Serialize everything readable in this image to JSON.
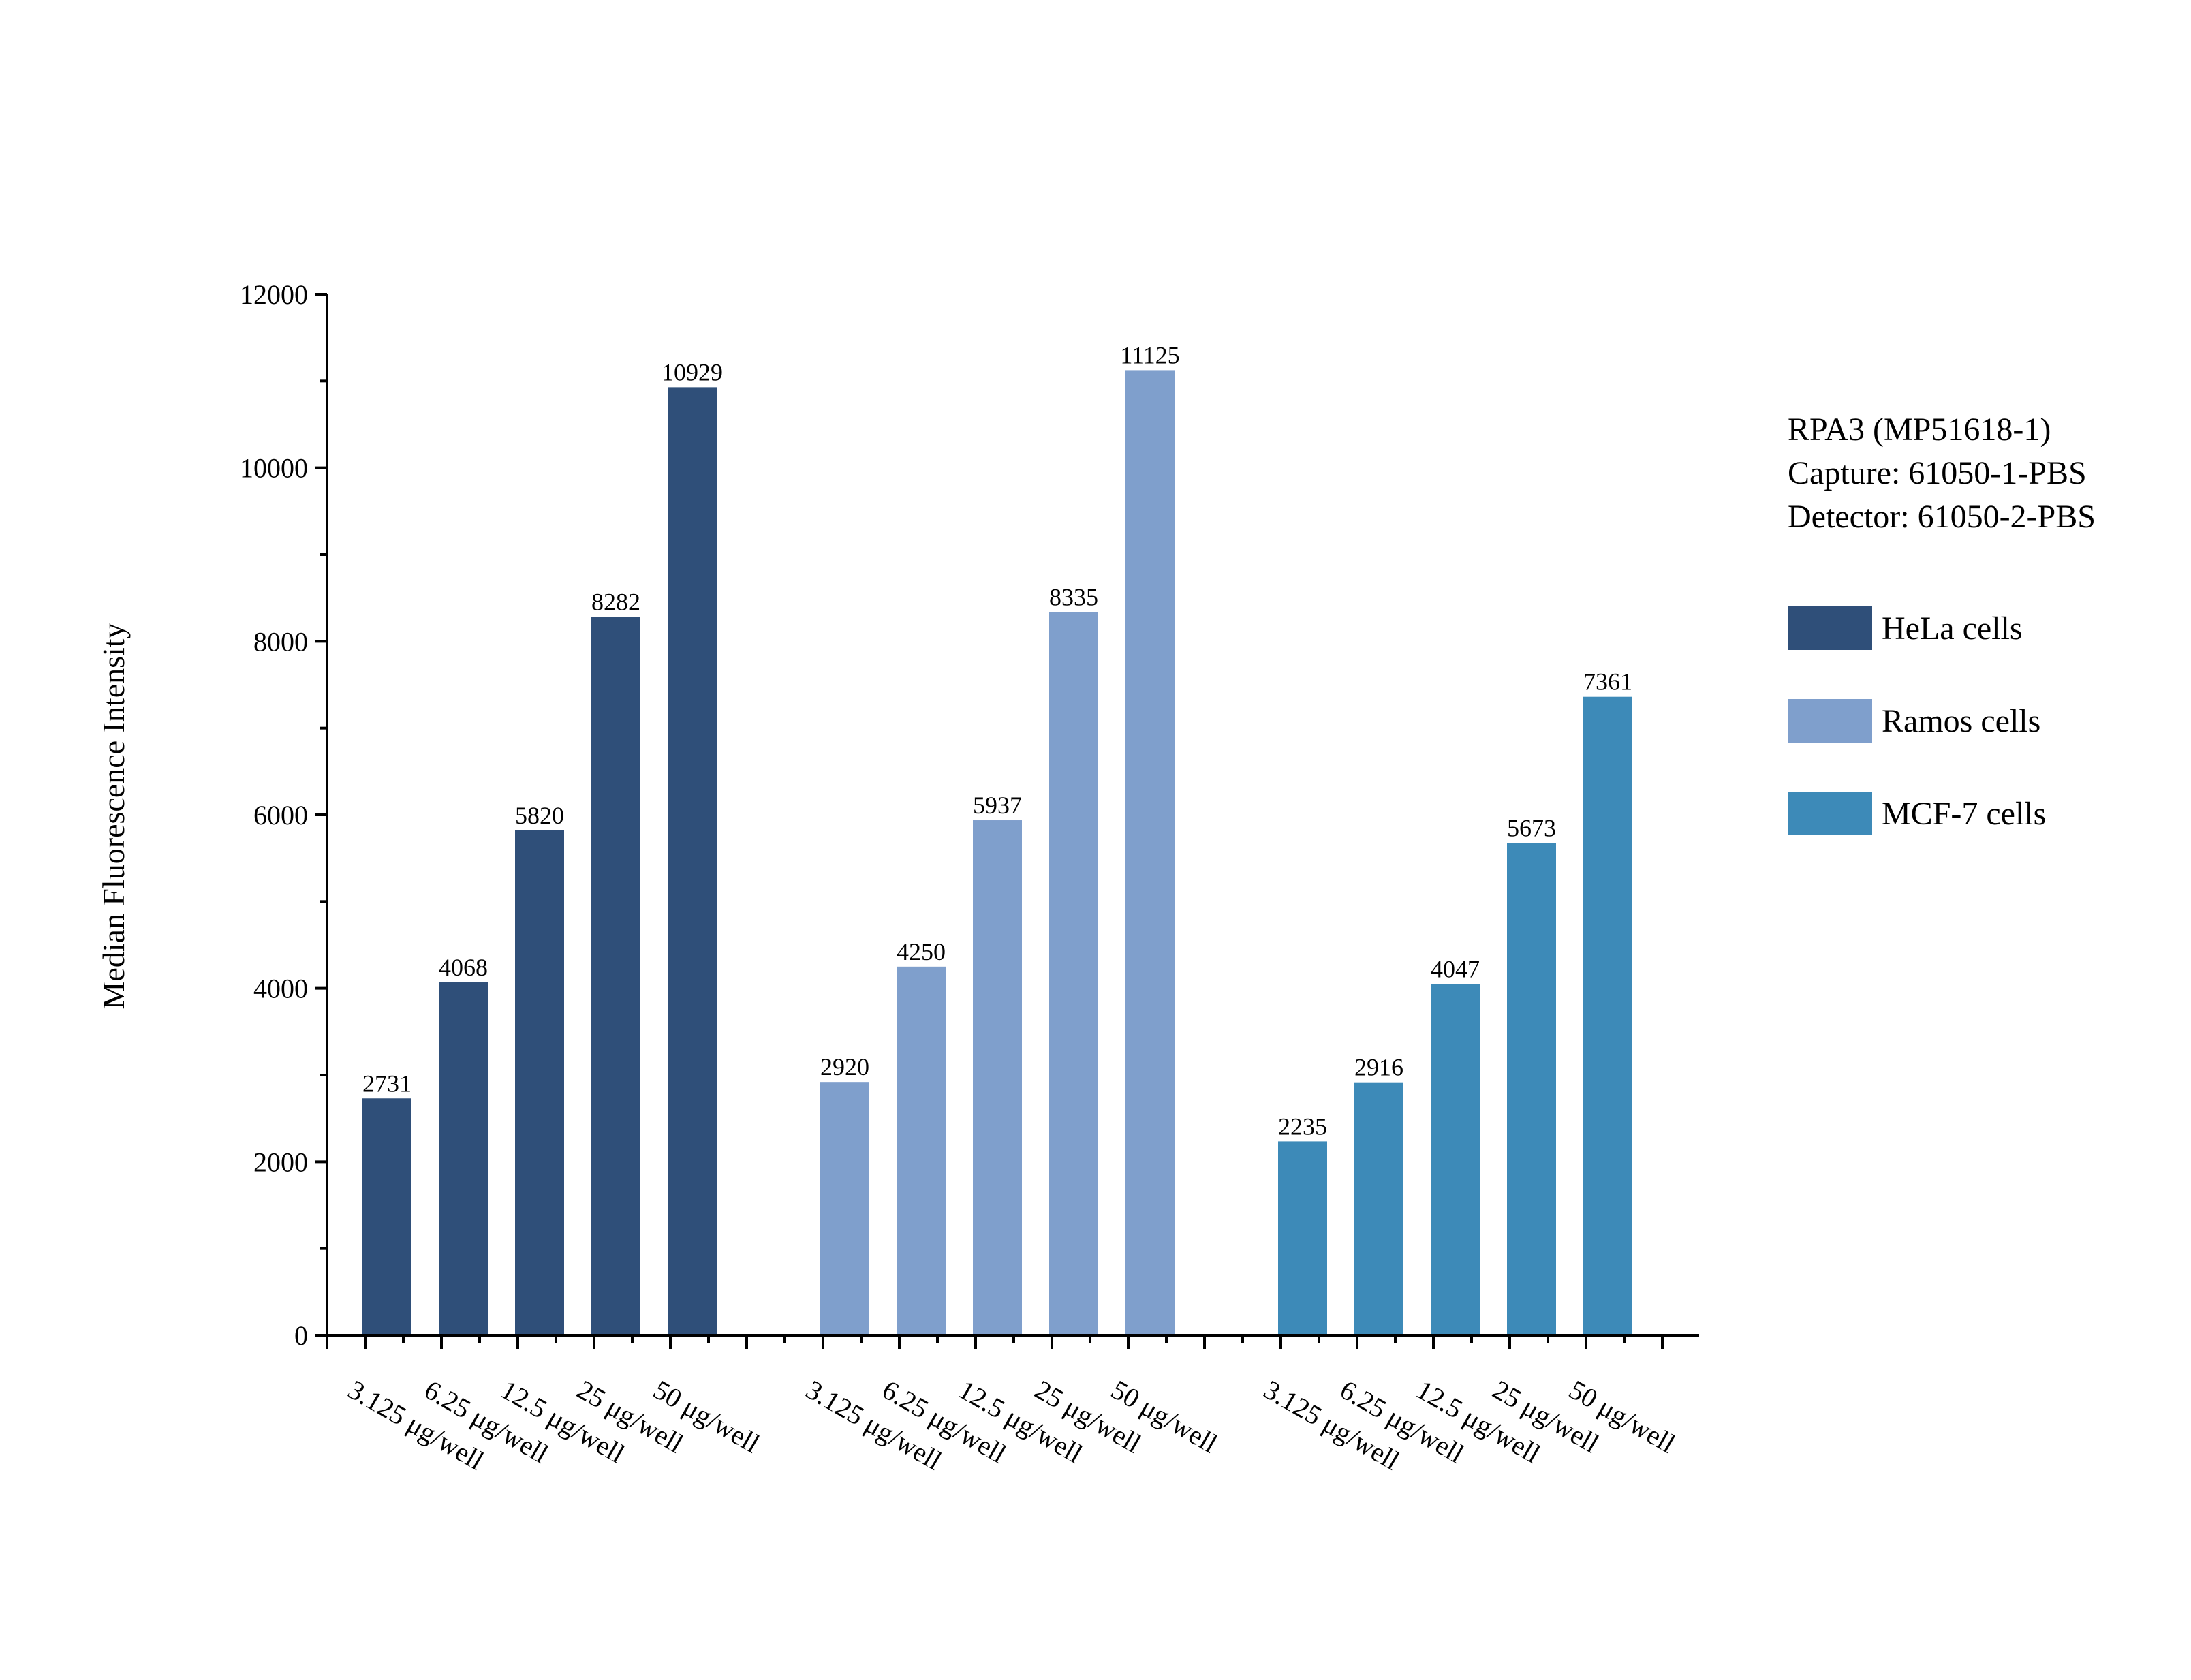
{
  "chart_data": {
    "type": "bar",
    "title": "",
    "xlabel": "",
    "ylabel": "Median Fluorescence Intensity",
    "ylim": [
      0,
      12000
    ],
    "yticks": [
      0,
      2000,
      4000,
      6000,
      8000,
      10000,
      12000
    ],
    "grid": false,
    "legend_position": "right",
    "annotation_lines": [
      "RPA3 (MP51618-1)",
      "Capture: 61050-1-PBS",
      "Detector: 61050-2-PBS"
    ],
    "categories": [
      "3.125 μg/well",
      "6.25 μg/well",
      "12.5 μg/well",
      "25 μg/well",
      "50 μg/well"
    ],
    "series": [
      {
        "name": "HeLa cells",
        "color": "#2f4f79",
        "values": [
          2731,
          4068,
          5820,
          8282,
          10929
        ]
      },
      {
        "name": "Ramos cells",
        "color": "#7f9fcc",
        "values": [
          2920,
          4250,
          5937,
          8335,
          11125
        ]
      },
      {
        "name": "MCF-7 cells",
        "color": "#3d8ab8",
        "values": [
          2235,
          2916,
          4047,
          5673,
          7361
        ]
      }
    ]
  }
}
